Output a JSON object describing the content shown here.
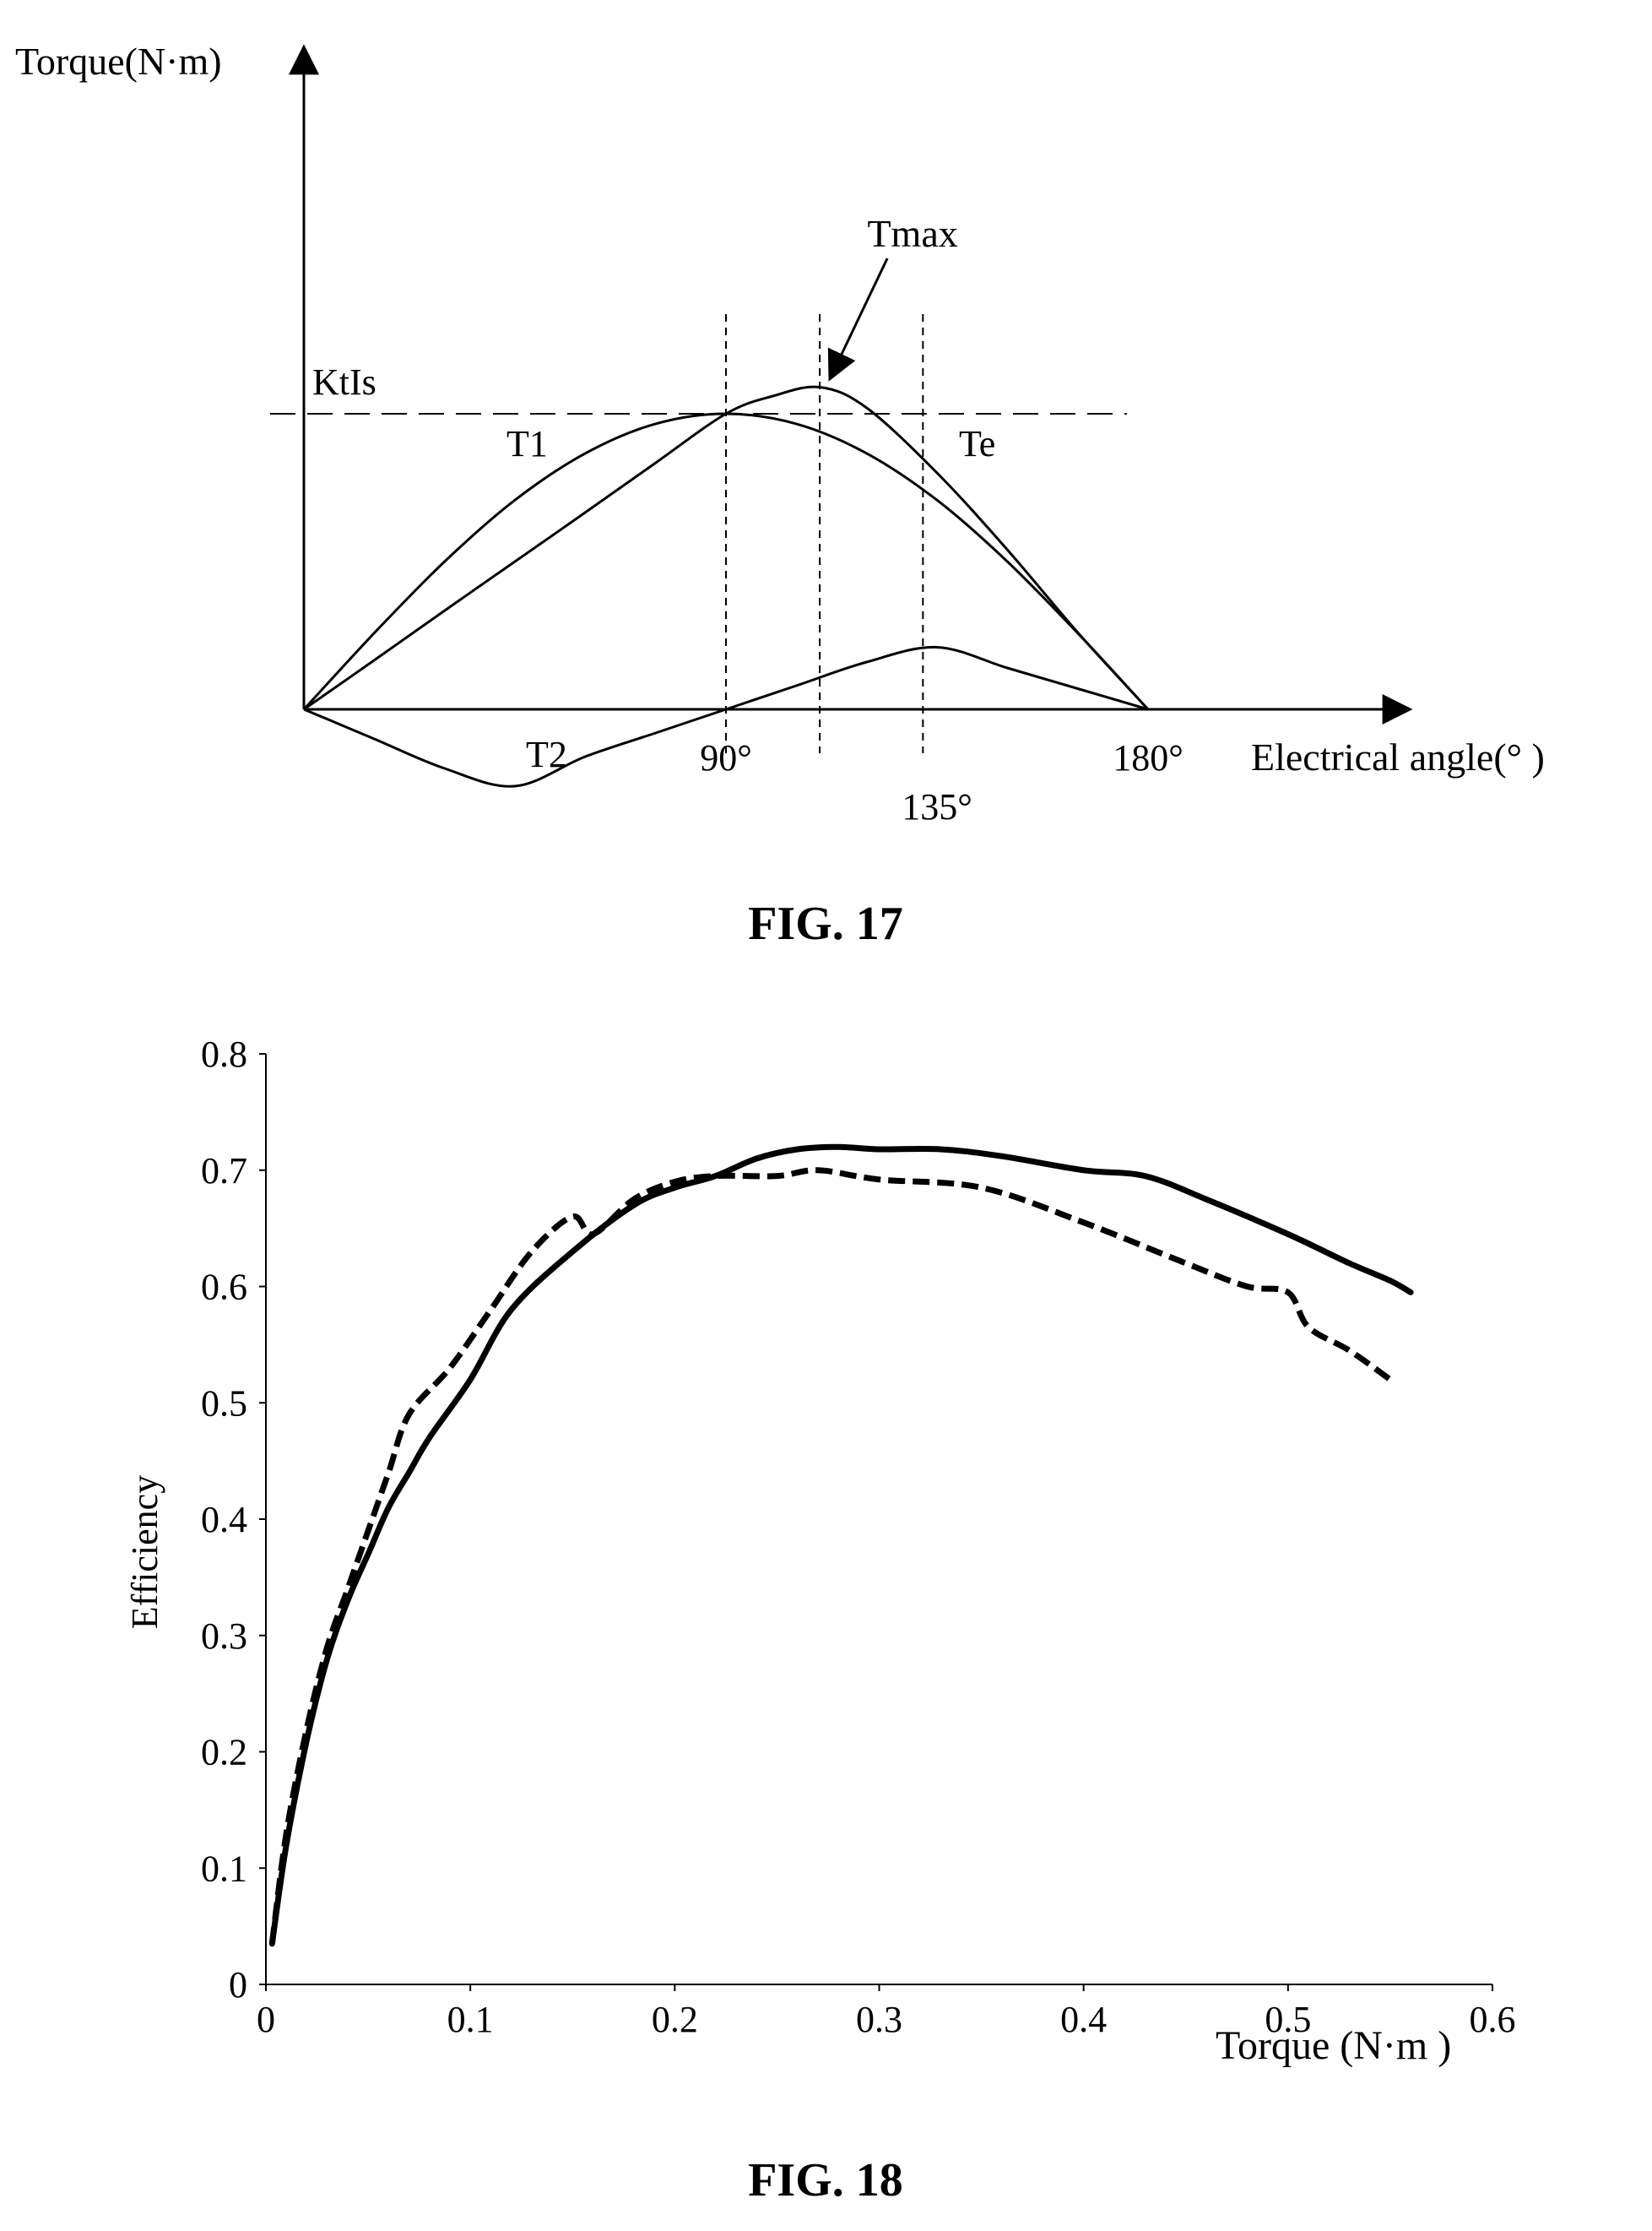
{
  "chart_data": [
    {
      "type": "line",
      "caption": "FIG. 17",
      "ylabel": "Torque(N·m)",
      "xlabel": "Electrical angle(° )",
      "xlim": [
        0,
        180
      ],
      "ylim": [
        -0.25,
        1.0
      ],
      "x_ticks": [
        {
          "value": 90,
          "label": "90°"
        },
        {
          "value": 135,
          "label": "135°"
        },
        {
          "value": 180,
          "label": "180°"
        }
      ],
      "reference_lines": [
        {
          "orientation": "horizontal",
          "value": 0.5,
          "label": "KtIs",
          "style": "dashed"
        },
        {
          "orientation": "vertical",
          "value": 90,
          "style": "dashed"
        },
        {
          "orientation": "vertical",
          "value": 110,
          "style": "dashed"
        },
        {
          "orientation": "vertical",
          "value": 132,
          "style": "dashed"
        }
      ],
      "series": [
        {
          "name": "T1",
          "x": [
            0,
            15,
            30,
            45,
            60,
            75,
            90,
            105,
            120,
            135,
            150,
            165,
            180
          ],
          "y": [
            0,
            0.129,
            0.25,
            0.354,
            0.433,
            0.483,
            0.5,
            0.483,
            0.433,
            0.354,
            0.25,
            0.129,
            0
          ]
        },
        {
          "name": "T2",
          "x": [
            0,
            15,
            30,
            45,
            60,
            75,
            90,
            105,
            120,
            135,
            150,
            165,
            180
          ],
          "y": [
            0,
            -0.05,
            -0.1,
            -0.13,
            -0.08,
            -0.04,
            0,
            0.04,
            0.08,
            0.105,
            0.07,
            0.035,
            0
          ]
        },
        {
          "name": "Te",
          "x": [
            0,
            15,
            30,
            45,
            60,
            75,
            90,
            100,
            110,
            120,
            135,
            150,
            165,
            180
          ],
          "y": [
            0,
            0.083,
            0.167,
            0.25,
            0.333,
            0.417,
            0.5,
            0.53,
            0.545,
            0.51,
            0.4,
            0.27,
            0.13,
            0
          ]
        }
      ],
      "annotations": [
        {
          "text": "Tmax",
          "x": 110,
          "y": 0.545
        }
      ]
    },
    {
      "type": "line",
      "caption": "FIG. 18",
      "xlabel": "Torque (N·m )",
      "ylabel": "Efficiency",
      "xlim": [
        0,
        0.6
      ],
      "ylim": [
        0,
        0.8
      ],
      "x_ticks": [
        "0",
        "0.1",
        "0.2",
        "0.3",
        "0.4",
        "0.5",
        "0.6"
      ],
      "y_ticks": [
        "0",
        "0.1",
        "0.2",
        "0.3",
        "0.4",
        "0.5",
        "0.6",
        "0.7",
        "0.8"
      ],
      "series": [
        {
          "style": "solid",
          "x": [
            0.003,
            0.01,
            0.02,
            0.03,
            0.04,
            0.05,
            0.06,
            0.07,
            0.08,
            0.1,
            0.12,
            0.15,
            0.18,
            0.2,
            0.22,
            0.24,
            0.26,
            0.28,
            0.3,
            0.33,
            0.36,
            0.4,
            0.43,
            0.46,
            0.5,
            0.53,
            0.55,
            0.56
          ],
          "y": [
            0.035,
            0.12,
            0.21,
            0.28,
            0.33,
            0.37,
            0.41,
            0.44,
            0.47,
            0.52,
            0.58,
            0.63,
            0.67,
            0.685,
            0.695,
            0.71,
            0.718,
            0.72,
            0.718,
            0.718,
            0.712,
            0.7,
            0.695,
            0.675,
            0.645,
            0.62,
            0.605,
            0.595
          ]
        },
        {
          "style": "dashed",
          "x": [
            0.003,
            0.01,
            0.02,
            0.03,
            0.04,
            0.05,
            0.06,
            0.07,
            0.09,
            0.11,
            0.13,
            0.15,
            0.16,
            0.18,
            0.2,
            0.22,
            0.25,
            0.27,
            0.3,
            0.35,
            0.4,
            0.45,
            0.48,
            0.5,
            0.51,
            0.53,
            0.55
          ],
          "y": [
            0.035,
            0.13,
            0.22,
            0.29,
            0.34,
            0.39,
            0.44,
            0.49,
            0.53,
            0.58,
            0.63,
            0.66,
            0.645,
            0.675,
            0.69,
            0.695,
            0.695,
            0.7,
            0.692,
            0.685,
            0.655,
            0.62,
            0.6,
            0.595,
            0.565,
            0.545,
            0.52
          ]
        }
      ]
    }
  ]
}
